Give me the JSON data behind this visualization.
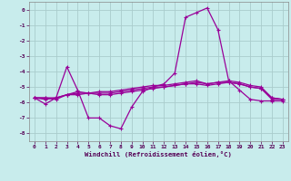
{
  "xlabel": "Windchill (Refroidissement éolien,°C)",
  "background_color": "#c8ecec",
  "grid_color": "#b0d8d8",
  "line_color": "#990099",
  "x": [
    0,
    1,
    2,
    3,
    4,
    5,
    6,
    7,
    8,
    9,
    10,
    11,
    12,
    13,
    14,
    15,
    16,
    17,
    18,
    19,
    20,
    21,
    22,
    23
  ],
  "line1": [
    -5.7,
    -6.1,
    -5.7,
    -3.7,
    -5.2,
    -7.0,
    -7.0,
    -7.5,
    -7.7,
    -6.3,
    -5.3,
    -5.0,
    -4.8,
    -4.1,
    -0.5,
    -0.2,
    0.1,
    -1.3,
    -4.6,
    -5.2,
    -5.8,
    -5.9,
    -5.9,
    -5.9
  ],
  "line2": [
    -5.7,
    -5.7,
    -5.7,
    -5.5,
    -5.5,
    -5.4,
    -5.4,
    -5.4,
    -5.3,
    -5.2,
    -5.1,
    -5.0,
    -5.0,
    -4.9,
    -4.8,
    -4.7,
    -4.8,
    -4.7,
    -4.7,
    -4.8,
    -5.0,
    -5.1,
    -5.8,
    -5.8
  ],
  "line3": [
    -5.7,
    -5.8,
    -5.7,
    -5.5,
    -5.4,
    -5.4,
    -5.3,
    -5.3,
    -5.2,
    -5.1,
    -5.0,
    -4.9,
    -4.9,
    -4.8,
    -4.7,
    -4.6,
    -4.8,
    -4.7,
    -4.6,
    -4.7,
    -4.9,
    -5.0,
    -5.7,
    -5.8
  ],
  "line4": [
    -5.7,
    -5.7,
    -5.8,
    -5.5,
    -5.3,
    -5.4,
    -5.5,
    -5.5,
    -5.4,
    -5.3,
    -5.2,
    -5.1,
    -5.0,
    -4.9,
    -4.8,
    -4.8,
    -4.9,
    -4.8,
    -4.7,
    -4.8,
    -5.0,
    -5.1,
    -5.7,
    -5.8
  ],
  "ylim": [
    -8.5,
    0.5
  ],
  "xlim": [
    -0.5,
    23.5
  ],
  "yticks": [
    0,
    -1,
    -2,
    -3,
    -4,
    -5,
    -6,
    -7,
    -8
  ],
  "xticks": [
    0,
    1,
    2,
    3,
    4,
    5,
    6,
    7,
    8,
    9,
    10,
    11,
    12,
    13,
    14,
    15,
    16,
    17,
    18,
    19,
    20,
    21,
    22,
    23
  ]
}
